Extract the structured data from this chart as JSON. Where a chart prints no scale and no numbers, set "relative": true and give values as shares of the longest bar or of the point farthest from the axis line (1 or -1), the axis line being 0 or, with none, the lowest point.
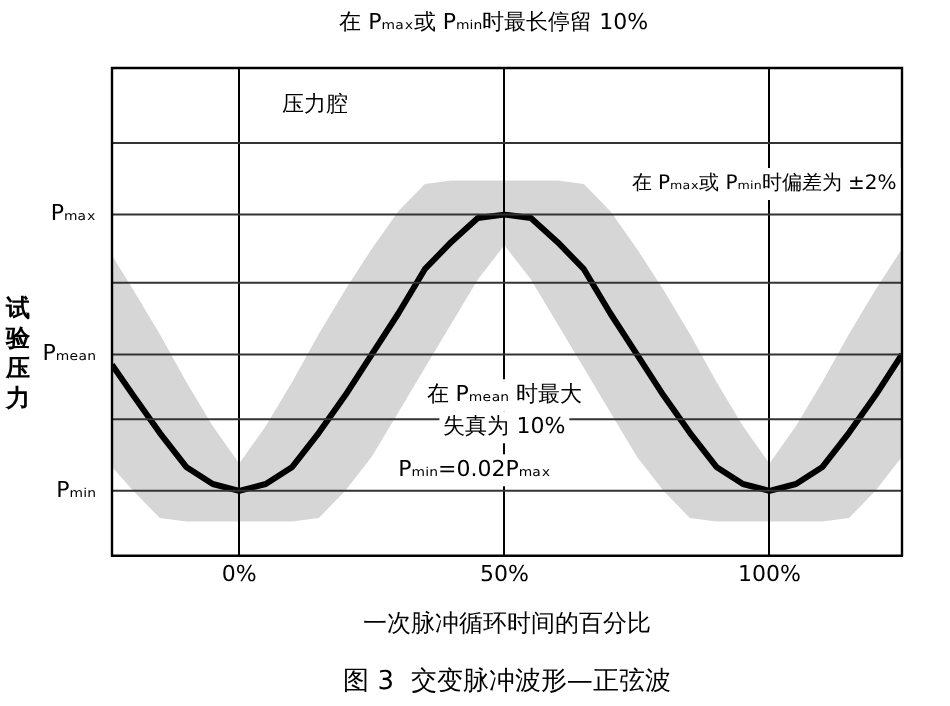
{
  "chart_data": {
    "type": "line",
    "title": "图 3  交变脉冲波形—正弦波",
    "xlabel": "一次脉冲循环时间的百分比",
    "ylabel": "试验压力",
    "relative": true,
    "x": [
      -24,
      -20,
      -15,
      -10,
      -5,
      0,
      5,
      10,
      15,
      20,
      25,
      30,
      35,
      40,
      45,
      50,
      55,
      60,
      65,
      70,
      75,
      80,
      85,
      90,
      95,
      100,
      105,
      110,
      115,
      120,
      125
    ],
    "series": [
      {
        "color": "#000000",
        "values": [
          0.56,
          0.47,
          0.36,
          0.26,
          0.21,
          0.19,
          0.21,
          0.26,
          0.36,
          0.47,
          0.59,
          0.71,
          0.84,
          0.92,
          0.99,
          1,
          0.99,
          0.92,
          0.84,
          0.71,
          0.59,
          0.47,
          0.36,
          0.26,
          0.21,
          0.19,
          0.21,
          0.26,
          0.36,
          0.47,
          0.59
        ],
        "lower": [
          0.26,
          0.19,
          0.11,
          0.1,
          0.1,
          0.1,
          0.1,
          0.1,
          0.11,
          0.19,
          0.29,
          0.42,
          0.55,
          0.68,
          0.81,
          0.91,
          0.81,
          0.68,
          0.55,
          0.42,
          0.29,
          0.19,
          0.11,
          0.1,
          0.1,
          0.1,
          0.1,
          0.1,
          0.11,
          0.19,
          0.29
        ],
        "upper": [
          0.88,
          0.78,
          0.65,
          0.51,
          0.38,
          0.27,
          0.38,
          0.51,
          0.65,
          0.78,
          0.9,
          1.01,
          1.09,
          1.1,
          1.1,
          1.1,
          1.1,
          1.1,
          1.09,
          1.01,
          0.9,
          0.78,
          0.65,
          0.51,
          0.38,
          0.27,
          0.38,
          0.51,
          0.65,
          0.78,
          0.9
        ]
      }
    ],
    "xlim": [
      -24,
      125
    ],
    "xticks": [
      {
        "value": 0,
        "label": "0%"
      },
      {
        "value": 50,
        "label": "50%"
      },
      {
        "value": 100,
        "label": "100%"
      }
    ],
    "ref_lines": [
      {
        "axis": "y",
        "value": 0.19,
        "label": "Pₘᵢₙ",
        "color": "#333333"
      },
      {
        "axis": "y",
        "value": 0.4,
        "label": null,
        "color": "#333333"
      },
      {
        "axis": "y",
        "value": 0.59,
        "label": "Pₘₑₐₙ",
        "color": "#333333"
      },
      {
        "axis": "y",
        "value": 0.8,
        "label": null,
        "color": "#333333"
      },
      {
        "axis": "y",
        "value": 1.0,
        "label": "Pₘₐₓ",
        "color": "#333333"
      },
      {
        "axis": "y",
        "value": 1.21,
        "label": null,
        "color": "#333333"
      }
    ],
    "grid": "x",
    "legend": false,
    "annotations": [
      "在 Pₘₐₓ或 Pₘᵢₙ时最长停留 10%",
      "压力腔",
      "在 Pₘₐₓ或 Pₘᵢₙ时偏差为 ±2%",
      "在 Pₘₑₐₙ 时最大失真为 10%",
      "Pₘᵢₙ=0.02Pₘₐₓ"
    ]
  }
}
